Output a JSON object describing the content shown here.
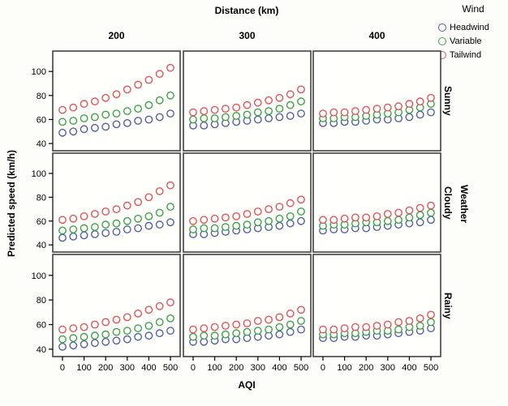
{
  "figure": {
    "title": "Distance (km)",
    "x_axis_label": "AQI",
    "y_axis_label": "Predicted speed (km/h)",
    "row_facet_label": "Weather"
  },
  "legend": {
    "title": "Wind",
    "items": [
      {
        "label": "Headwind",
        "color": "#5360a4"
      },
      {
        "label": "Variable",
        "color": "#3fa14d"
      },
      {
        "label": "Tailwind",
        "color": "#df555d"
      }
    ]
  },
  "chart_data": {
    "type": "scatter",
    "title": "Distance (km)",
    "x_label": "AQI",
    "y_label": "Predicted speed (km/h)",
    "marker": "open-circle",
    "grid": false,
    "legend_position": "top-right",
    "facet_columns": {
      "label": "Distance (km)",
      "values": [
        "200",
        "300",
        "400"
      ]
    },
    "facet_rows": {
      "label": "Weather",
      "values": [
        "Sunny",
        "Cloudy",
        "Rainy"
      ]
    },
    "x": [
      0,
      50,
      100,
      150,
      200,
      250,
      300,
      350,
      400,
      450,
      500
    ],
    "x_ticks": [
      0,
      100,
      200,
      300,
      400,
      500
    ],
    "y_ticks": [
      40,
      60,
      80,
      100
    ],
    "xlim": [
      -45,
      545
    ],
    "ylim": [
      34,
      117
    ],
    "series_order": [
      "Headwind",
      "Variable",
      "Tailwind"
    ],
    "series_colors": {
      "Headwind": "#5360a4",
      "Variable": "#3fa14d",
      "Tailwind": "#df555d"
    },
    "panels": [
      {
        "row": "Sunny",
        "col": "200",
        "series": {
          "Headwind": [
            49,
            50,
            52,
            53,
            54,
            56,
            57,
            59,
            60,
            62,
            65
          ],
          "Variable": [
            58,
            59,
            61,
            62,
            64,
            65,
            67,
            69,
            72,
            76,
            80
          ],
          "Tailwind": [
            68,
            70,
            73,
            75,
            78,
            81,
            85,
            89,
            93,
            98,
            103
          ]
        }
      },
      {
        "row": "Sunny",
        "col": "300",
        "series": {
          "Headwind": [
            55,
            55,
            56,
            57,
            58,
            59,
            60,
            61,
            62,
            63,
            65
          ],
          "Variable": [
            60,
            61,
            61,
            62,
            63,
            64,
            66,
            67,
            69,
            72,
            75
          ],
          "Tailwind": [
            66,
            67,
            68,
            69,
            70,
            72,
            74,
            76,
            78,
            81,
            85
          ]
        }
      },
      {
        "row": "Sunny",
        "col": "400",
        "series": {
          "Headwind": [
            57,
            57,
            58,
            58,
            59,
            60,
            60,
            61,
            62,
            64,
            66
          ],
          "Variable": [
            61,
            61,
            62,
            62,
            63,
            64,
            65,
            66,
            68,
            70,
            73
          ],
          "Tailwind": [
            65,
            66,
            66,
            67,
            68,
            69,
            70,
            71,
            73,
            75,
            78
          ]
        }
      },
      {
        "row": "Cloudy",
        "col": "200",
        "series": {
          "Headwind": [
            46,
            47,
            48,
            49,
            50,
            51,
            53,
            54,
            56,
            57,
            59
          ],
          "Variable": [
            52,
            53,
            54,
            55,
            57,
            58,
            60,
            62,
            64,
            67,
            72
          ],
          "Tailwind": [
            61,
            62,
            64,
            66,
            68,
            70,
            73,
            76,
            80,
            85,
            90
          ]
        }
      },
      {
        "row": "Cloudy",
        "col": "300",
        "series": {
          "Headwind": [
            49,
            49,
            50,
            51,
            52,
            53,
            54,
            55,
            56,
            58,
            60
          ],
          "Variable": [
            53,
            54,
            54,
            55,
            56,
            57,
            59,
            60,
            62,
            64,
            68
          ],
          "Tailwind": [
            60,
            61,
            62,
            63,
            64,
            66,
            68,
            70,
            72,
            75,
            78
          ]
        }
      },
      {
        "row": "Cloudy",
        "col": "400",
        "series": {
          "Headwind": [
            52,
            53,
            53,
            54,
            54,
            55,
            56,
            57,
            58,
            59,
            61
          ],
          "Variable": [
            56,
            57,
            57,
            58,
            59,
            59,
            60,
            61,
            63,
            65,
            67
          ],
          "Tailwind": [
            61,
            61,
            62,
            63,
            63,
            64,
            66,
            67,
            69,
            71,
            73
          ]
        }
      },
      {
        "row": "Rainy",
        "col": "200",
        "series": {
          "Headwind": [
            42,
            43,
            44,
            45,
            46,
            47,
            48,
            50,
            51,
            53,
            55
          ],
          "Variable": [
            48,
            49,
            50,
            51,
            52,
            54,
            55,
            57,
            59,
            62,
            65
          ],
          "Tailwind": [
            56,
            57,
            58,
            60,
            62,
            64,
            66,
            69,
            72,
            75,
            78
          ]
        }
      },
      {
        "row": "Rainy",
        "col": "300",
        "series": {
          "Headwind": [
            46,
            46,
            47,
            48,
            48,
            49,
            50,
            51,
            52,
            54,
            56
          ],
          "Variable": [
            50,
            51,
            51,
            52,
            53,
            54,
            55,
            56,
            58,
            60,
            63
          ],
          "Tailwind": [
            56,
            57,
            58,
            59,
            60,
            61,
            63,
            64,
            66,
            69,
            72
          ]
        }
      },
      {
        "row": "Rainy",
        "col": "400",
        "series": {
          "Headwind": [
            49,
            49,
            50,
            50,
            51,
            51,
            52,
            53,
            54,
            55,
            57
          ],
          "Variable": [
            52,
            52,
            53,
            53,
            54,
            55,
            55,
            56,
            58,
            59,
            62
          ],
          "Tailwind": [
            56,
            56,
            57,
            58,
            58,
            59,
            60,
            62,
            63,
            65,
            68
          ]
        }
      }
    ]
  }
}
